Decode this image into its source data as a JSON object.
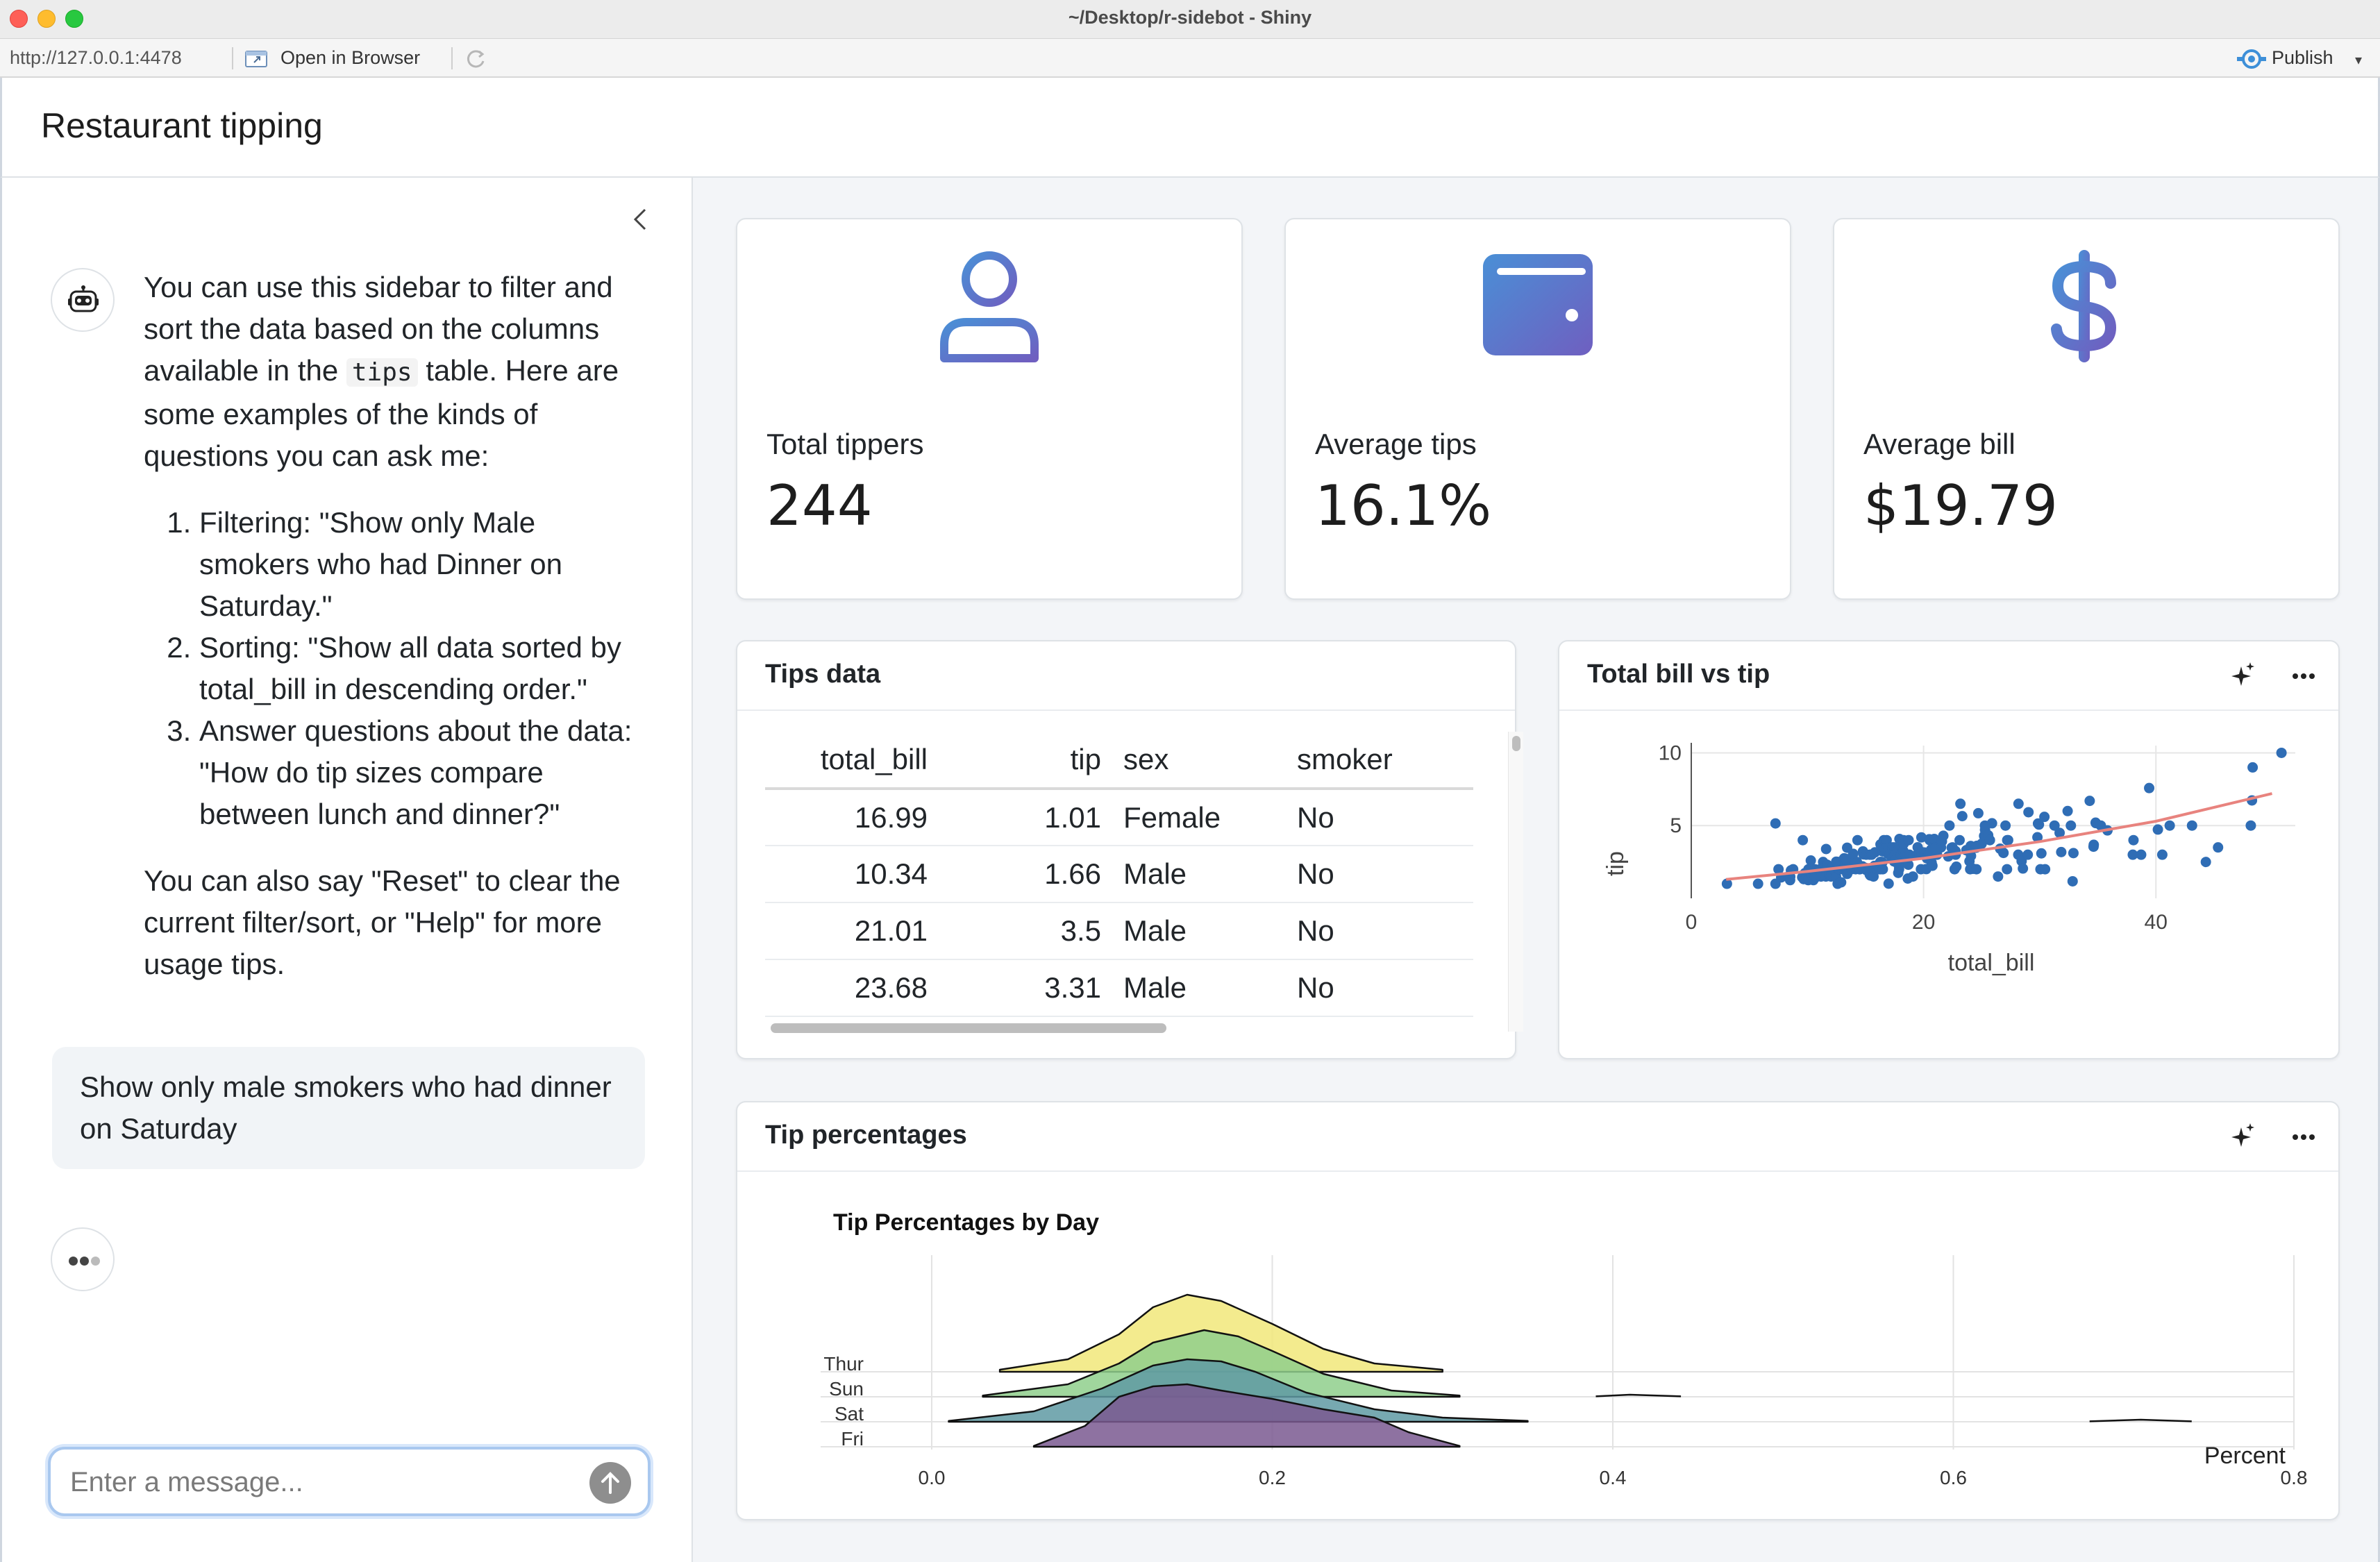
{
  "window": {
    "title": "~/Desktop/r-sidebot - Shiny"
  },
  "toolbar": {
    "url": "http://127.0.0.1:4478",
    "open_in_browser": "Open in Browser",
    "publish": "Publish"
  },
  "app": {
    "title": "Restaurant tipping"
  },
  "sidebar": {
    "intro_before_code": "You can use this sidebar to filter and sort the data based on the columns available in the ",
    "intro_code": "tips",
    "intro_after_code": " table. Here are some examples of the kinds of questions you can ask me:",
    "examples": [
      "Filtering: \"Show only Male smokers who had Dinner on Saturday.\"",
      "Sorting: \"Show all data sorted by total_bill in descending order.\"",
      "Answer questions about the data: \"How do tip sizes compare between lunch and dinner?\""
    ],
    "outro": "You can also say \"Reset\" to clear the current filter/sort, or \"Help\" for more usage tips.",
    "user_message": "Show only male smokers who had dinner on Saturday",
    "input_placeholder": "Enter a message..."
  },
  "value_boxes": [
    {
      "title": "Total tippers",
      "value": "244",
      "icon": "person-icon"
    },
    {
      "title": "Average tips",
      "value": "16.1%",
      "icon": "wallet-icon"
    },
    {
      "title": "Average bill",
      "value": "$19.79",
      "icon": "dollar-icon"
    }
  ],
  "icon_gradient": [
    "#4a8fd6",
    "#6f5fc0"
  ],
  "tips_table": {
    "title": "Tips data",
    "columns": [
      "total_bill",
      "tip",
      "sex",
      "smoker"
    ],
    "rows": [
      [
        "16.99",
        "1.01",
        "Female",
        "No"
      ],
      [
        "10.34",
        "1.66",
        "Male",
        "No"
      ],
      [
        "21.01",
        "3.5",
        "Male",
        "No"
      ],
      [
        "23.68",
        "3.31",
        "Male",
        "No"
      ]
    ]
  },
  "scatter_card": {
    "title": "Total bill vs tip"
  },
  "ridge_card": {
    "title": "Tip percentages"
  },
  "chart_data": [
    {
      "type": "scatter",
      "xlabel": "total_bill",
      "ylabel": "tip",
      "xlim": [
        0,
        52
      ],
      "ylim": [
        0,
        10.5
      ],
      "xticks": [
        0,
        20,
        40
      ],
      "yticks": [
        5,
        10
      ],
      "point_color": "#2f6db5",
      "trend_color": "#e8837e",
      "points": [
        [
          3.07,
          1
        ],
        [
          5.75,
          1
        ],
        [
          7.25,
          1
        ],
        [
          7.25,
          5.15
        ],
        [
          7.51,
          2
        ],
        [
          7.74,
          1.44
        ],
        [
          8.35,
          1.5
        ],
        [
          8.51,
          1.25
        ],
        [
          8.52,
          1.48
        ],
        [
          8.58,
          1.92
        ],
        [
          8.77,
          2
        ],
        [
          9.55,
          1.45
        ],
        [
          9.6,
          4
        ],
        [
          9.68,
          1.32
        ],
        [
          9.78,
          1.73
        ],
        [
          9.94,
          1.56
        ],
        [
          10.07,
          1.83
        ],
        [
          10.07,
          1.25
        ],
        [
          10.09,
          2
        ],
        [
          10.27,
          1.71
        ],
        [
          10.29,
          2.6
        ],
        [
          10.33,
          1.67
        ],
        [
          10.33,
          2
        ],
        [
          10.34,
          1.66
        ],
        [
          10.34,
          2
        ],
        [
          10.51,
          1.25
        ],
        [
          10.59,
          1.61
        ],
        [
          10.63,
          2
        ],
        [
          10.65,
          1.5
        ],
        [
          10.77,
          1.47
        ],
        [
          11.02,
          1.98
        ],
        [
          11.17,
          1.5
        ],
        [
          11.24,
          1.76
        ],
        [
          11.35,
          2.5
        ],
        [
          11.38,
          2
        ],
        [
          11.59,
          1.5
        ],
        [
          11.61,
          3.39
        ],
        [
          11.69,
          2.31
        ],
        [
          11.87,
          1.63
        ],
        [
          12.02,
          1.97
        ],
        [
          12.03,
          1.5
        ],
        [
          12.16,
          2.2
        ],
        [
          12.26,
          2
        ],
        [
          12.43,
          1.8
        ],
        [
          12.46,
          1.5
        ],
        [
          12.48,
          2.52
        ],
        [
          12.54,
          2.5
        ],
        [
          12.6,
          1
        ],
        [
          12.66,
          2.5
        ],
        [
          12.69,
          2
        ],
        [
          12.74,
          2.01
        ],
        [
          12.76,
          2.23
        ],
        [
          12.9,
          1.1
        ],
        [
          13,
          2
        ],
        [
          13.03,
          2
        ],
        [
          13.13,
          2
        ],
        [
          13.16,
          2.75
        ],
        [
          13.27,
          2.5
        ],
        [
          13.28,
          2.72
        ],
        [
          13.37,
          2
        ],
        [
          13.39,
          2.61
        ],
        [
          13.42,
          1.68
        ],
        [
          13.42,
          3.48
        ],
        [
          13.51,
          2
        ],
        [
          13.81,
          2
        ],
        [
          13.94,
          3.06
        ],
        [
          14.07,
          2.5
        ],
        [
          14.15,
          2
        ],
        [
          14.26,
          2.5
        ],
        [
          14.31,
          4
        ],
        [
          14.48,
          2
        ],
        [
          14.52,
          2
        ],
        [
          14.73,
          2.2
        ],
        [
          14.78,
          3.23
        ],
        [
          14.83,
          3.02
        ],
        [
          15.01,
          2.09
        ],
        [
          15.04,
          1.96
        ],
        [
          15.06,
          3
        ],
        [
          15.36,
          1.64
        ],
        [
          15.38,
          3
        ],
        [
          15.42,
          1.57
        ],
        [
          15.48,
          2.02
        ],
        [
          15.53,
          3
        ],
        [
          15.69,
          1.5
        ],
        [
          15.77,
          2.23
        ],
        [
          15.81,
          3.16
        ],
        [
          15.98,
          2.03
        ],
        [
          16,
          2
        ],
        [
          16.04,
          2.24
        ],
        [
          16.21,
          2
        ],
        [
          16.27,
          2.5
        ],
        [
          16.29,
          3.71
        ],
        [
          16.31,
          2
        ],
        [
          16.4,
          2.5
        ],
        [
          16.45,
          2.47
        ],
        [
          16.47,
          3.23
        ],
        [
          16.49,
          2
        ],
        [
          16.58,
          4
        ],
        [
          16.66,
          3.4
        ],
        [
          16.82,
          4
        ],
        [
          16.93,
          3.07
        ],
        [
          16.97,
          3.5
        ],
        [
          16.99,
          1.01
        ],
        [
          17.07,
          3
        ],
        [
          17.26,
          2.74
        ],
        [
          17.29,
          2.71
        ],
        [
          17.31,
          3.5
        ],
        [
          17.46,
          2.54
        ],
        [
          17.47,
          3.5
        ],
        [
          17.51,
          3
        ],
        [
          17.59,
          2.64
        ],
        [
          17.78,
          3.27
        ],
        [
          17.81,
          2.34
        ],
        [
          17.82,
          1.75
        ],
        [
          17.89,
          2
        ],
        [
          17.92,
          4.08
        ],
        [
          18.04,
          3
        ],
        [
          18.15,
          3.5
        ],
        [
          18.24,
          3.76
        ],
        [
          18.26,
          3.25
        ],
        [
          18.28,
          4
        ],
        [
          18.29,
          3.76
        ],
        [
          18.35,
          2.5
        ],
        [
          18.43,
          3
        ],
        [
          18.64,
          1.36
        ],
        [
          18.69,
          2.31
        ],
        [
          18.71,
          4
        ],
        [
          18.78,
          3
        ],
        [
          19.08,
          1.5
        ],
        [
          19.44,
          3
        ],
        [
          19.49,
          3.51
        ],
        [
          19.65,
          3
        ],
        [
          19.77,
          2
        ],
        [
          19.81,
          4.19
        ],
        [
          19.82,
          3.18
        ],
        [
          20.08,
          3.15
        ],
        [
          20.23,
          2.01
        ],
        [
          20.27,
          2.83
        ],
        [
          20.29,
          2.75
        ],
        [
          20.45,
          3
        ],
        [
          20.49,
          4.06
        ],
        [
          20.53,
          4
        ],
        [
          20.65,
          3.35
        ],
        [
          20.69,
          2.45
        ],
        [
          20.76,
          2.24
        ],
        [
          20.9,
          3.5
        ],
        [
          20.92,
          4.08
        ],
        [
          21.01,
          3.5
        ],
        [
          21.16,
          3
        ],
        [
          21.5,
          3.5
        ],
        [
          21.58,
          3.92
        ],
        [
          21.7,
          4.3
        ],
        [
          22.12,
          2.88
        ],
        [
          22.23,
          5
        ],
        [
          22.42,
          3.48
        ],
        [
          22.49,
          3.5
        ],
        [
          22.67,
          2
        ],
        [
          22.75,
          3.25
        ],
        [
          22.76,
          3
        ],
        [
          22.82,
          2.18
        ],
        [
          23.1,
          4
        ],
        [
          23.17,
          6.5
        ],
        [
          23.33,
          5.65
        ],
        [
          23.68,
          3.31
        ],
        [
          23.95,
          2.55
        ],
        [
          24.01,
          2
        ],
        [
          24.06,
          3.6
        ],
        [
          24.08,
          2.92
        ],
        [
          24.27,
          2.03
        ],
        [
          24.52,
          3.48
        ],
        [
          24.55,
          2
        ],
        [
          24.59,
          3.61
        ],
        [
          24.71,
          5.85
        ],
        [
          25,
          3.75
        ],
        [
          25.21,
          4.29
        ],
        [
          25.28,
          5
        ],
        [
          25.29,
          4.71
        ],
        [
          25.56,
          4.34
        ],
        [
          25.71,
          4
        ],
        [
          25.89,
          5.16
        ],
        [
          26.41,
          1.5
        ],
        [
          26.59,
          3.41
        ],
        [
          26.86,
          3.14
        ],
        [
          26.88,
          3.12
        ],
        [
          27.05,
          5
        ],
        [
          27.18,
          2
        ],
        [
          27.2,
          4
        ],
        [
          27.28,
          4
        ],
        [
          28.15,
          3
        ],
        [
          28.17,
          6.5
        ],
        [
          28.44,
          2.56
        ],
        [
          28.55,
          2.05
        ],
        [
          28.97,
          3
        ],
        [
          29.03,
          5.92
        ],
        [
          29.8,
          4.2
        ],
        [
          29.85,
          5.14
        ],
        [
          29.93,
          5.07
        ],
        [
          30.06,
          2
        ],
        [
          30.14,
          3.09
        ],
        [
          30.4,
          5.6
        ],
        [
          30.46,
          2
        ],
        [
          31.27,
          5
        ],
        [
          31.71,
          4.5
        ],
        [
          31.85,
          3.18
        ],
        [
          32.4,
          6
        ],
        [
          32.68,
          5
        ],
        [
          32.83,
          1.17
        ],
        [
          32.9,
          3.11
        ],
        [
          34.3,
          6.7
        ],
        [
          34.63,
          3.55
        ],
        [
          34.65,
          3.68
        ],
        [
          34.81,
          5.2
        ],
        [
          34.83,
          5.17
        ],
        [
          35.26,
          5
        ],
        [
          35.83,
          4.67
        ],
        [
          38.01,
          3
        ],
        [
          38.07,
          4
        ],
        [
          38.73,
          3
        ],
        [
          39.42,
          7.58
        ],
        [
          40.17,
          4.73
        ],
        [
          40.55,
          3
        ],
        [
          41.19,
          5
        ],
        [
          43.11,
          5
        ],
        [
          44.3,
          2.5
        ],
        [
          45.35,
          3.5
        ],
        [
          48.17,
          5
        ],
        [
          48.27,
          6.73
        ],
        [
          48.33,
          9
        ],
        [
          50.81,
          10
        ]
      ],
      "trend": [
        [
          3,
          1.3
        ],
        [
          10,
          1.85
        ],
        [
          20,
          2.75
        ],
        [
          30,
          3.9
        ],
        [
          40,
          5.3
        ],
        [
          50,
          7.2
        ]
      ]
    },
    {
      "type": "area",
      "subtype": "ridgeline",
      "title": "Tip Percentages by Day",
      "xlabel": "Percent",
      "xlim": [
        0,
        0.8
      ],
      "xticks": [
        0.0,
        0.2,
        0.4,
        0.6,
        0.8
      ],
      "categories": [
        "Thur",
        "Sun",
        "Sat",
        "Fri"
      ],
      "series": [
        {
          "name": "Thur",
          "color": "#f1e87a",
          "x": [
            0.04,
            0.08,
            0.11,
            0.13,
            0.15,
            0.17,
            0.2,
            0.23,
            0.26,
            0.3
          ],
          "density": [
            0.05,
            0.3,
            0.9,
            1.55,
            1.85,
            1.7,
            1.15,
            0.55,
            0.2,
            0.05
          ]
        },
        {
          "name": "Sun",
          "color": "#8fcf8c",
          "x": [
            0.03,
            0.08,
            0.11,
            0.13,
            0.16,
            0.18,
            0.2,
            0.23,
            0.27,
            0.31
          ],
          "density": [
            0.03,
            0.3,
            0.8,
            1.3,
            1.6,
            1.45,
            1.1,
            0.55,
            0.15,
            0.03
          ],
          "tail": [
            [
              0.39,
              0.01
            ],
            [
              0.41,
              0.05
            ],
            [
              0.44,
              0.01
            ]
          ]
        },
        {
          "name": "Sat",
          "color": "#5f9aa3",
          "x": [
            0.01,
            0.06,
            0.1,
            0.13,
            0.15,
            0.17,
            0.19,
            0.22,
            0.26,
            0.3,
            0.35
          ],
          "density": [
            0.02,
            0.25,
            0.8,
            1.35,
            1.5,
            1.45,
            1.2,
            0.7,
            0.3,
            0.1,
            0.02
          ],
          "tail": [
            [
              0.68,
              0.01
            ],
            [
              0.71,
              0.05
            ],
            [
              0.74,
              0.01
            ]
          ]
        },
        {
          "name": "Fri",
          "color": "#7a5991",
          "x": [
            0.06,
            0.09,
            0.11,
            0.13,
            0.15,
            0.17,
            0.2,
            0.23,
            0.26,
            0.28,
            0.31
          ],
          "density": [
            0.02,
            0.5,
            1.2,
            1.45,
            1.5,
            1.35,
            1.15,
            0.9,
            0.7,
            0.35,
            0.02
          ]
        }
      ]
    }
  ]
}
